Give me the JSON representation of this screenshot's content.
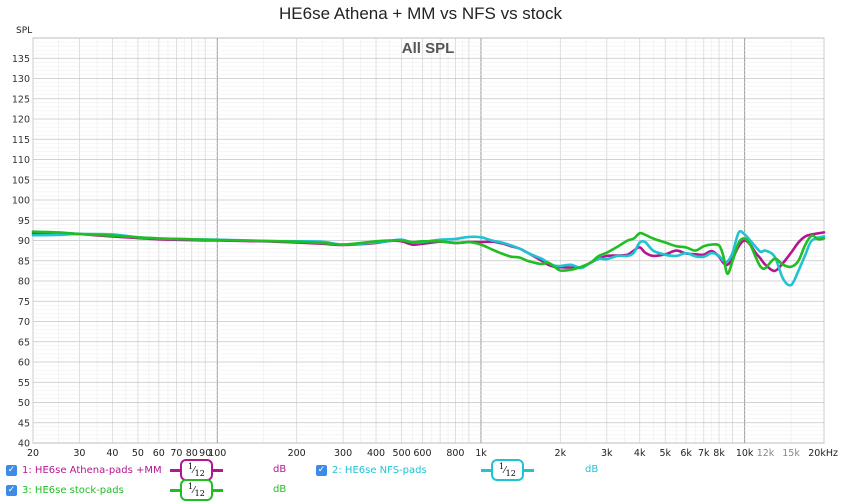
{
  "title": "HE6se Athena + MM vs NFS vs stock",
  "legend": [
    {
      "num": "1:",
      "name": "HE6se Athena-pads +MM",
      "color": "#b5168f",
      "smoothing": "1/12",
      "unit": "dB"
    },
    {
      "num": "2:",
      "name": "HE6se NFS-pads",
      "color": "#1fc3d1",
      "smoothing": "1/12",
      "unit": "dB"
    },
    {
      "num": "3:",
      "name": "HE6se stock-pads",
      "color": "#1fbe22",
      "smoothing": "1/12",
      "unit": "dB"
    }
  ],
  "chart_data": {
    "type": "line",
    "title": "All SPL",
    "ylabel": "SPL",
    "xlabel": "",
    "x_scale": "log",
    "xlim": [
      20,
      20000
    ],
    "ylim": [
      40,
      140
    ],
    "grid": true,
    "legend_position": "bottom",
    "x_tick_labels": [
      {
        "v": 20,
        "t": "20"
      },
      {
        "v": 30,
        "t": "30"
      },
      {
        "v": 40,
        "t": "40"
      },
      {
        "v": 50,
        "t": "50"
      },
      {
        "v": 60,
        "t": "60"
      },
      {
        "v": 70,
        "t": "70"
      },
      {
        "v": 80,
        "t": "80"
      },
      {
        "v": 90,
        "t": "90"
      },
      {
        "v": 100,
        "t": "100"
      },
      {
        "v": 200,
        "t": "200"
      },
      {
        "v": 300,
        "t": "300"
      },
      {
        "v": 400,
        "t": "400"
      },
      {
        "v": 500,
        "t": "500"
      },
      {
        "v": 600,
        "t": "600"
      },
      {
        "v": 800,
        "t": "800"
      },
      {
        "v": 1000,
        "t": "1k"
      },
      {
        "v": 2000,
        "t": "2k"
      },
      {
        "v": 3000,
        "t": "3k"
      },
      {
        "v": 4000,
        "t": "4k"
      },
      {
        "v": 5000,
        "t": "5k"
      },
      {
        "v": 6000,
        "t": "6k"
      },
      {
        "v": 7000,
        "t": "7k"
      },
      {
        "v": 8000,
        "t": "8k"
      },
      {
        "v": 10000,
        "t": "10k"
      },
      {
        "v": 12000,
        "t": "12k"
      },
      {
        "v": 15000,
        "t": "15k"
      },
      {
        "v": 20000,
        "t": "20kHz"
      }
    ],
    "y_ticks": [
      40,
      45,
      50,
      55,
      60,
      65,
      70,
      75,
      80,
      85,
      90,
      95,
      100,
      105,
      110,
      115,
      120,
      125,
      130,
      135
    ],
    "series": [
      {
        "name": "HE6se Athena-pads +MM",
        "color": "#b5168f",
        "points": [
          [
            20,
            91.8
          ],
          [
            25,
            91.8
          ],
          [
            30,
            91.6
          ],
          [
            40,
            91
          ],
          [
            50,
            90.6
          ],
          [
            60,
            90.3
          ],
          [
            80,
            90.1
          ],
          [
            100,
            90
          ],
          [
            150,
            89.8
          ],
          [
            200,
            89.5
          ],
          [
            250,
            89.2
          ],
          [
            300,
            88.9
          ],
          [
            400,
            89.4
          ],
          [
            450,
            89.9
          ],
          [
            500,
            89.8
          ],
          [
            550,
            89
          ],
          [
            600,
            89.2
          ],
          [
            700,
            89.7
          ],
          [
            800,
            89.4
          ],
          [
            900,
            89.6
          ],
          [
            1000,
            89.6
          ],
          [
            1100,
            89.7
          ],
          [
            1200,
            89.3
          ],
          [
            1300,
            88.6
          ],
          [
            1400,
            88
          ],
          [
            1500,
            87
          ],
          [
            1600,
            86
          ],
          [
            1700,
            85
          ],
          [
            1800,
            84
          ],
          [
            1900,
            83.5
          ],
          [
            2000,
            83.4
          ],
          [
            2200,
            83.3
          ],
          [
            2400,
            83.4
          ],
          [
            2600,
            84.5
          ],
          [
            2800,
            85.5
          ],
          [
            3000,
            86.2
          ],
          [
            3300,
            86.3
          ],
          [
            3600,
            86.5
          ],
          [
            3800,
            87.5
          ],
          [
            4000,
            88.3
          ],
          [
            4200,
            87
          ],
          [
            4500,
            86.2
          ],
          [
            5000,
            86.6
          ],
          [
            5500,
            87.5
          ],
          [
            6000,
            86.8
          ],
          [
            6500,
            86.6
          ],
          [
            7000,
            86.5
          ],
          [
            7500,
            87.4
          ],
          [
            8000,
            86
          ],
          [
            8300,
            84.5
          ],
          [
            8600,
            84
          ],
          [
            9000,
            85.5
          ],
          [
            9500,
            88.6
          ],
          [
            10000,
            90
          ],
          [
            10500,
            89
          ],
          [
            11000,
            87
          ],
          [
            11500,
            85.5
          ],
          [
            12000,
            84
          ],
          [
            13000,
            82.5
          ],
          [
            14000,
            84.5
          ],
          [
            15000,
            87
          ],
          [
            16000,
            89.5
          ],
          [
            17000,
            91
          ],
          [
            18000,
            91.5
          ],
          [
            20000,
            92
          ]
        ]
      },
      {
        "name": "HE6se NFS-pads",
        "color": "#1fc3d1",
        "points": [
          [
            20,
            91.3
          ],
          [
            25,
            91.4
          ],
          [
            30,
            91.6
          ],
          [
            40,
            91.5
          ],
          [
            50,
            90.8
          ],
          [
            60,
            90.5
          ],
          [
            80,
            90.3
          ],
          [
            100,
            90.2
          ],
          [
            150,
            89.9
          ],
          [
            200,
            89.8
          ],
          [
            250,
            89.7
          ],
          [
            300,
            89
          ],
          [
            400,
            89.5
          ],
          [
            450,
            89.9
          ],
          [
            500,
            90.2
          ],
          [
            550,
            89.5
          ],
          [
            600,
            89.6
          ],
          [
            700,
            90.2
          ],
          [
            800,
            90.4
          ],
          [
            900,
            90.9
          ],
          [
            1000,
            90.8
          ],
          [
            1100,
            90
          ],
          [
            1200,
            89.5
          ],
          [
            1300,
            88.8
          ],
          [
            1400,
            88
          ],
          [
            1500,
            87
          ],
          [
            1600,
            86.2
          ],
          [
            1700,
            85.5
          ],
          [
            1800,
            84.5
          ],
          [
            1900,
            83.8
          ],
          [
            2000,
            83.7
          ],
          [
            2200,
            84
          ],
          [
            2400,
            83.2
          ],
          [
            2600,
            84.5
          ],
          [
            2800,
            85.5
          ],
          [
            3000,
            85.4
          ],
          [
            3300,
            86.2
          ],
          [
            3600,
            86.2
          ],
          [
            3800,
            87
          ],
          [
            4000,
            89.5
          ],
          [
            4200,
            89.6
          ],
          [
            4500,
            87.5
          ],
          [
            5000,
            86.5
          ],
          [
            5500,
            86.2
          ],
          [
            6000,
            86.9
          ],
          [
            6500,
            86.1
          ],
          [
            7000,
            86
          ],
          [
            7500,
            86.9
          ],
          [
            8000,
            86.2
          ],
          [
            8300,
            85
          ],
          [
            8600,
            84.8
          ],
          [
            9000,
            87
          ],
          [
            9500,
            92
          ],
          [
            10000,
            91.5
          ],
          [
            10500,
            90
          ],
          [
            11000,
            88.5
          ],
          [
            11500,
            87.2
          ],
          [
            12000,
            87.5
          ],
          [
            13000,
            86
          ],
          [
            14000,
            80.5
          ],
          [
            15000,
            79
          ],
          [
            16000,
            82.5
          ],
          [
            17000,
            86.5
          ],
          [
            18000,
            90
          ],
          [
            20000,
            91
          ]
        ]
      },
      {
        "name": "HE6se stock-pads",
        "color": "#1fbe22",
        "points": [
          [
            20,
            92.2
          ],
          [
            25,
            92
          ],
          [
            30,
            91.6
          ],
          [
            40,
            91.2
          ],
          [
            50,
            90.8
          ],
          [
            60,
            90.5
          ],
          [
            80,
            90.3
          ],
          [
            100,
            90.1
          ],
          [
            150,
            89.9
          ],
          [
            200,
            89.7
          ],
          [
            250,
            89.4
          ],
          [
            300,
            89
          ],
          [
            400,
            89.8
          ],
          [
            450,
            90
          ],
          [
            500,
            90
          ],
          [
            550,
            89.6
          ],
          [
            600,
            89.8
          ],
          [
            700,
            89.8
          ],
          [
            800,
            89.4
          ],
          [
            900,
            89.6
          ],
          [
            1000,
            89
          ],
          [
            1100,
            87.8
          ],
          [
            1200,
            86.8
          ],
          [
            1300,
            86
          ],
          [
            1400,
            85.8
          ],
          [
            1500,
            85
          ],
          [
            1600,
            84.5
          ],
          [
            1700,
            84.2
          ],
          [
            1800,
            84.5
          ],
          [
            1900,
            83.5
          ],
          [
            2000,
            82.6
          ],
          [
            2200,
            82.8
          ],
          [
            2400,
            83.5
          ],
          [
            2600,
            84.5
          ],
          [
            2800,
            86.2
          ],
          [
            3000,
            87
          ],
          [
            3300,
            88.5
          ],
          [
            3600,
            90
          ],
          [
            3800,
            90.5
          ],
          [
            4000,
            91.8
          ],
          [
            4200,
            91.4
          ],
          [
            4500,
            90.5
          ],
          [
            5000,
            89.5
          ],
          [
            5500,
            88.6
          ],
          [
            6000,
            88.3
          ],
          [
            6500,
            87.5
          ],
          [
            7000,
            88.6
          ],
          [
            7500,
            89
          ],
          [
            8000,
            88.8
          ],
          [
            8300,
            86.2
          ],
          [
            8600,
            81.8
          ],
          [
            9000,
            85
          ],
          [
            9500,
            89.5
          ],
          [
            10000,
            90.5
          ],
          [
            10500,
            89
          ],
          [
            11000,
            86
          ],
          [
            11500,
            83.5
          ],
          [
            12000,
            83.2
          ],
          [
            13000,
            85.5
          ],
          [
            14000,
            84
          ],
          [
            15000,
            83.5
          ],
          [
            16000,
            85
          ],
          [
            17000,
            89
          ],
          [
            18000,
            91.2
          ],
          [
            19000,
            90.3
          ],
          [
            20000,
            90.5
          ]
        ]
      }
    ]
  }
}
